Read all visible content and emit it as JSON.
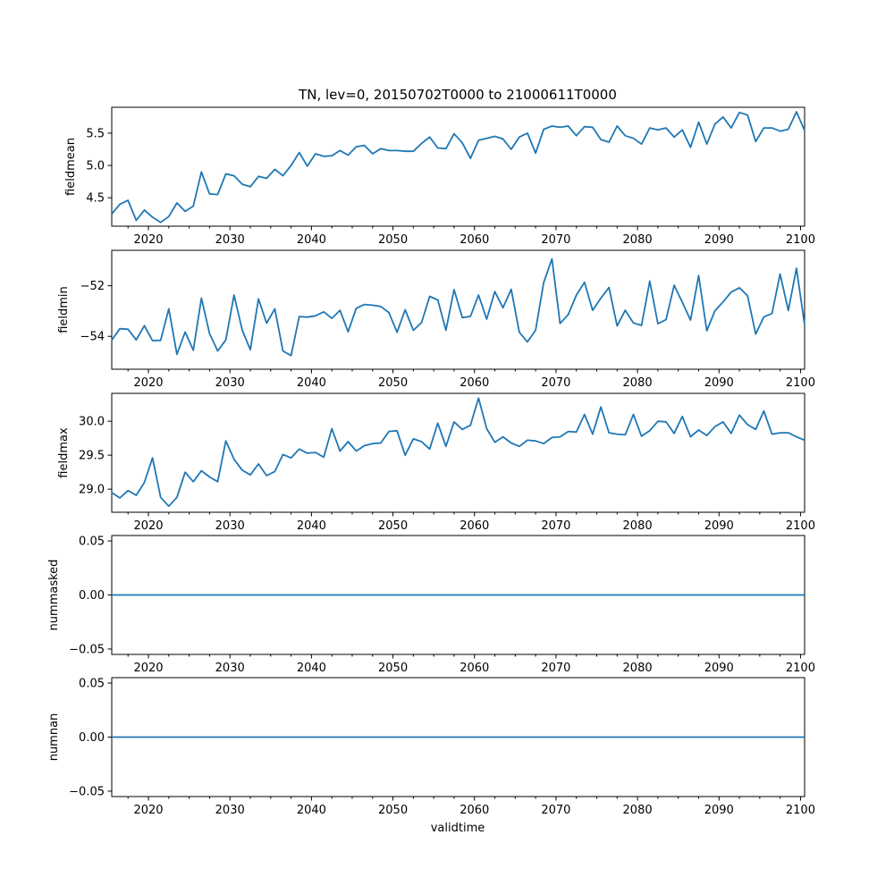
{
  "chart_data": {
    "type": "line",
    "title": "TN, lev=0, 20150702T0000 to 21000611T0000",
    "xlabel": "validtime",
    "xlim": [
      2015.5,
      2100.5
    ],
    "xticks": [
      2020,
      2030,
      2040,
      2050,
      2060,
      2070,
      2080,
      2090,
      2100
    ],
    "xtick_labels": [
      "2020",
      "2030",
      "2040",
      "2050",
      "2060",
      "2070",
      "2080",
      "2090",
      "2100"
    ],
    "x": [
      2015.5,
      2016.5,
      2017.5,
      2018.5,
      2019.5,
      2020.5,
      2021.5,
      2022.5,
      2023.5,
      2024.5,
      2025.5,
      2026.5,
      2027.5,
      2028.5,
      2029.5,
      2030.5,
      2031.5,
      2032.5,
      2033.5,
      2034.5,
      2035.5,
      2036.5,
      2037.5,
      2038.5,
      2039.5,
      2040.5,
      2041.5,
      2042.5,
      2043.5,
      2044.5,
      2045.5,
      2046.5,
      2047.5,
      2048.5,
      2049.5,
      2050.5,
      2051.5,
      2052.5,
      2053.5,
      2054.5,
      2055.5,
      2056.5,
      2057.5,
      2058.5,
      2059.5,
      2060.5,
      2061.5,
      2062.5,
      2063.5,
      2064.5,
      2065.5,
      2066.5,
      2067.5,
      2068.5,
      2069.5,
      2070.5,
      2071.5,
      2072.5,
      2073.5,
      2074.5,
      2075.5,
      2076.5,
      2077.5,
      2078.5,
      2079.5,
      2080.5,
      2081.5,
      2082.5,
      2083.5,
      2084.5,
      2085.5,
      2086.5,
      2087.5,
      2088.5,
      2089.5,
      2090.5,
      2091.5,
      2092.5,
      2093.5,
      2094.5,
      2095.5,
      2096.5,
      2097.5,
      2098.5,
      2099.5,
      2100.5
    ],
    "panels": [
      {
        "ylabel": "fieldmean",
        "ylim": [
          4.06,
          5.9
        ],
        "yticks": [
          4.5,
          5.0,
          5.5
        ],
        "ytick_labels": [
          "4.5",
          "5.0",
          "5.5"
        ],
        "values": [
          4.25,
          4.4,
          4.46,
          4.15,
          4.31,
          4.2,
          4.12,
          4.21,
          4.42,
          4.29,
          4.37,
          4.9,
          4.56,
          4.55,
          4.87,
          4.84,
          4.71,
          4.67,
          4.83,
          4.8,
          4.94,
          4.84,
          5.0,
          5.2,
          4.99,
          5.18,
          5.14,
          5.15,
          5.23,
          5.16,
          5.29,
          5.31,
          5.18,
          5.26,
          5.23,
          5.23,
          5.22,
          5.22,
          5.34,
          5.44,
          5.27,
          5.26,
          5.49,
          5.35,
          5.11,
          5.39,
          5.42,
          5.45,
          5.41,
          5.25,
          5.44,
          5.5,
          5.19,
          5.56,
          5.61,
          5.59,
          5.61,
          5.46,
          5.6,
          5.59,
          5.4,
          5.36,
          5.61,
          5.46,
          5.42,
          5.33,
          5.58,
          5.55,
          5.58,
          5.44,
          5.55,
          5.28,
          5.67,
          5.33,
          5.64,
          5.75,
          5.58,
          5.82,
          5.78,
          5.37,
          5.58,
          5.58,
          5.53,
          5.56,
          5.83,
          5.54
        ]
      },
      {
        "ylabel": "fieldmin",
        "ylim": [
          -55.3,
          -50.6
        ],
        "yticks": [
          -54,
          -52
        ],
        "ytick_labels": [
          "−54",
          "−52"
        ],
        "values": [
          -54.15,
          -53.7,
          -53.72,
          -54.14,
          -53.58,
          -54.17,
          -54.16,
          -52.91,
          -54.71,
          -53.83,
          -54.55,
          -52.49,
          -53.89,
          -54.58,
          -54.14,
          -52.37,
          -53.75,
          -54.53,
          -52.52,
          -53.48,
          -52.91,
          -54.58,
          -54.76,
          -53.22,
          -53.24,
          -53.19,
          -53.03,
          -53.29,
          -52.97,
          -53.82,
          -52.89,
          -52.74,
          -52.77,
          -52.82,
          -53.06,
          -53.84,
          -52.95,
          -53.76,
          -53.46,
          -52.42,
          -52.56,
          -53.76,
          -52.15,
          -53.26,
          -53.21,
          -52.37,
          -53.32,
          -52.23,
          -52.87,
          -52.14,
          -53.84,
          -54.22,
          -53.76,
          -51.87,
          -50.94,
          -53.49,
          -53.14,
          -52.37,
          -51.86,
          -52.97,
          -52.49,
          -52.07,
          -53.59,
          -52.97,
          -53.47,
          -53.57,
          -51.82,
          -53.5,
          -53.34,
          -51.98,
          -52.65,
          -53.36,
          -51.6,
          -53.78,
          -52.99,
          -52.64,
          -52.25,
          -52.08,
          -52.4,
          -53.91,
          -53.23,
          -53.1,
          -51.54,
          -52.98,
          -51.31,
          -53.54
        ]
      },
      {
        "ylabel": "fieldmax",
        "ylim": [
          28.66,
          30.41
        ],
        "yticks": [
          29.0,
          29.5,
          30.0
        ],
        "ytick_labels": [
          "29.0",
          "29.5",
          "30.0"
        ],
        "values": [
          28.95,
          28.87,
          28.98,
          28.91,
          29.1,
          29.46,
          28.88,
          28.75,
          28.88,
          29.25,
          29.11,
          29.27,
          29.18,
          29.11,
          29.71,
          29.44,
          29.28,
          29.21,
          29.37,
          29.2,
          29.26,
          29.51,
          29.46,
          29.59,
          29.53,
          29.54,
          29.47,
          29.89,
          29.56,
          29.7,
          29.56,
          29.64,
          29.67,
          29.68,
          29.85,
          29.86,
          29.5,
          29.74,
          29.7,
          29.59,
          29.97,
          29.63,
          29.99,
          29.88,
          29.94,
          30.34,
          29.89,
          29.69,
          29.77,
          29.68,
          29.63,
          29.72,
          29.71,
          29.67,
          29.76,
          29.77,
          29.85,
          29.84,
          30.1,
          29.81,
          30.21,
          29.83,
          29.81,
          29.8,
          30.1,
          29.78,
          29.86,
          30.0,
          29.99,
          29.82,
          30.07,
          29.77,
          29.87,
          29.79,
          29.92,
          29.99,
          29.82,
          30.09,
          29.95,
          29.88,
          30.15,
          29.81,
          29.83,
          29.83,
          29.77,
          29.72
        ]
      },
      {
        "ylabel": "nummasked",
        "ylim": [
          -0.055,
          0.055
        ],
        "yticks": [
          -0.05,
          0.0,
          0.05
        ],
        "ytick_labels": [
          "−0.05",
          "0.00",
          "0.05"
        ],
        "values": [
          0,
          0,
          0,
          0,
          0,
          0,
          0,
          0,
          0,
          0,
          0,
          0,
          0,
          0,
          0,
          0,
          0,
          0,
          0,
          0,
          0,
          0,
          0,
          0,
          0,
          0,
          0,
          0,
          0,
          0,
          0,
          0,
          0,
          0,
          0,
          0,
          0,
          0,
          0,
          0,
          0,
          0,
          0,
          0,
          0,
          0,
          0,
          0,
          0,
          0,
          0,
          0,
          0,
          0,
          0,
          0,
          0,
          0,
          0,
          0,
          0,
          0,
          0,
          0,
          0,
          0,
          0,
          0,
          0,
          0,
          0,
          0,
          0,
          0,
          0,
          0,
          0,
          0,
          0,
          0,
          0,
          0,
          0,
          0,
          0,
          0
        ]
      },
      {
        "ylabel": "numnan",
        "ylim": [
          -0.055,
          0.055
        ],
        "yticks": [
          -0.05,
          0.0,
          0.05
        ],
        "ytick_labels": [
          "−0.05",
          "0.00",
          "0.05"
        ],
        "values": [
          0,
          0,
          0,
          0,
          0,
          0,
          0,
          0,
          0,
          0,
          0,
          0,
          0,
          0,
          0,
          0,
          0,
          0,
          0,
          0,
          0,
          0,
          0,
          0,
          0,
          0,
          0,
          0,
          0,
          0,
          0,
          0,
          0,
          0,
          0,
          0,
          0,
          0,
          0,
          0,
          0,
          0,
          0,
          0,
          0,
          0,
          0,
          0,
          0,
          0,
          0,
          0,
          0,
          0,
          0,
          0,
          0,
          0,
          0,
          0,
          0,
          0,
          0,
          0,
          0,
          0,
          0,
          0,
          0,
          0,
          0,
          0,
          0,
          0,
          0,
          0,
          0,
          0,
          0,
          0,
          0,
          0,
          0,
          0,
          0,
          0
        ]
      }
    ]
  }
}
